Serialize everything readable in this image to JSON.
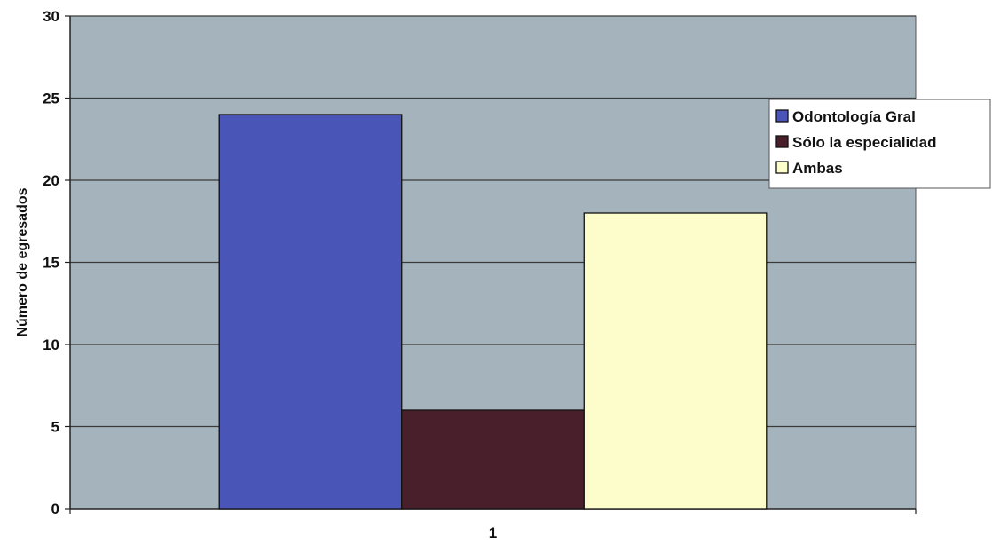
{
  "chart_data": {
    "type": "bar",
    "title": "",
    "xlabel": "",
    "ylabel": "Número de egresados",
    "categories": [
      "1"
    ],
    "ylim": [
      0,
      30
    ],
    "yticks": [
      0,
      5,
      10,
      15,
      20,
      25,
      30
    ],
    "grid": true,
    "legend_position": "right",
    "series": [
      {
        "name": "Odontología Gral",
        "values": [
          24
        ],
        "color": "#4a55b8"
      },
      {
        "name": "Sólo la especialidad",
        "values": [
          6
        ],
        "color": "#4a1f2c"
      },
      {
        "name": "Ambas",
        "values": [
          18
        ],
        "color": "#fdfccb"
      }
    ],
    "plot_background": "#a5b3bd"
  }
}
